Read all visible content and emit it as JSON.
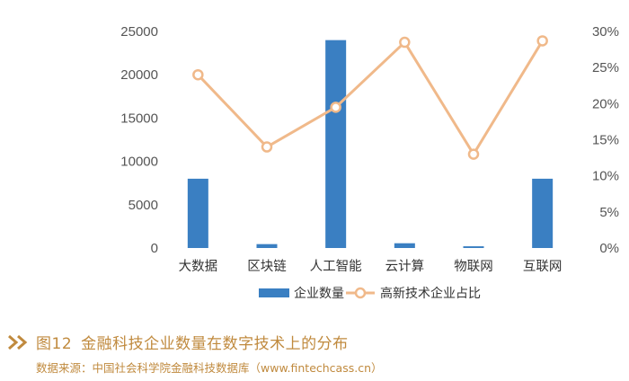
{
  "chart_data": {
    "type": "bar",
    "categories": [
      "大数据",
      "区块链",
      "人工智能",
      "云计算",
      "物联网",
      "互联网"
    ],
    "series": [
      {
        "name": "企业数量",
        "kind": "bar",
        "axis": "left",
        "values": [
          8000,
          450,
          24000,
          550,
          200,
          8000
        ]
      },
      {
        "name": "高新技术企业占比",
        "kind": "line",
        "axis": "right",
        "values": [
          24,
          14,
          19.5,
          28.5,
          13,
          28.7
        ]
      }
    ],
    "y_left": {
      "ylim": [
        0,
        25000
      ],
      "ticks": [
        "0",
        "5000",
        "10000",
        "15000",
        "20000",
        "25000"
      ]
    },
    "y_right": {
      "ylim": [
        0,
        30
      ],
      "ticks": [
        "0%",
        "5%",
        "10%",
        "15%",
        "20%",
        "25%",
        "30%"
      ]
    },
    "grid": false,
    "legend": "bottom-center",
    "colors": {
      "bar": "#3a7fc2",
      "line": "#f0b98a",
      "marker_fill": "#ffffff"
    }
  },
  "caption": {
    "number": "图12",
    "title": "金融科技企业数量在数字技术上的分布",
    "source": "数据来源：中国社会科学院金融科技数据库（www.fintechcass.cn）"
  },
  "colors": {
    "caption": "#c08a3e",
    "axis_text": "#555555"
  }
}
